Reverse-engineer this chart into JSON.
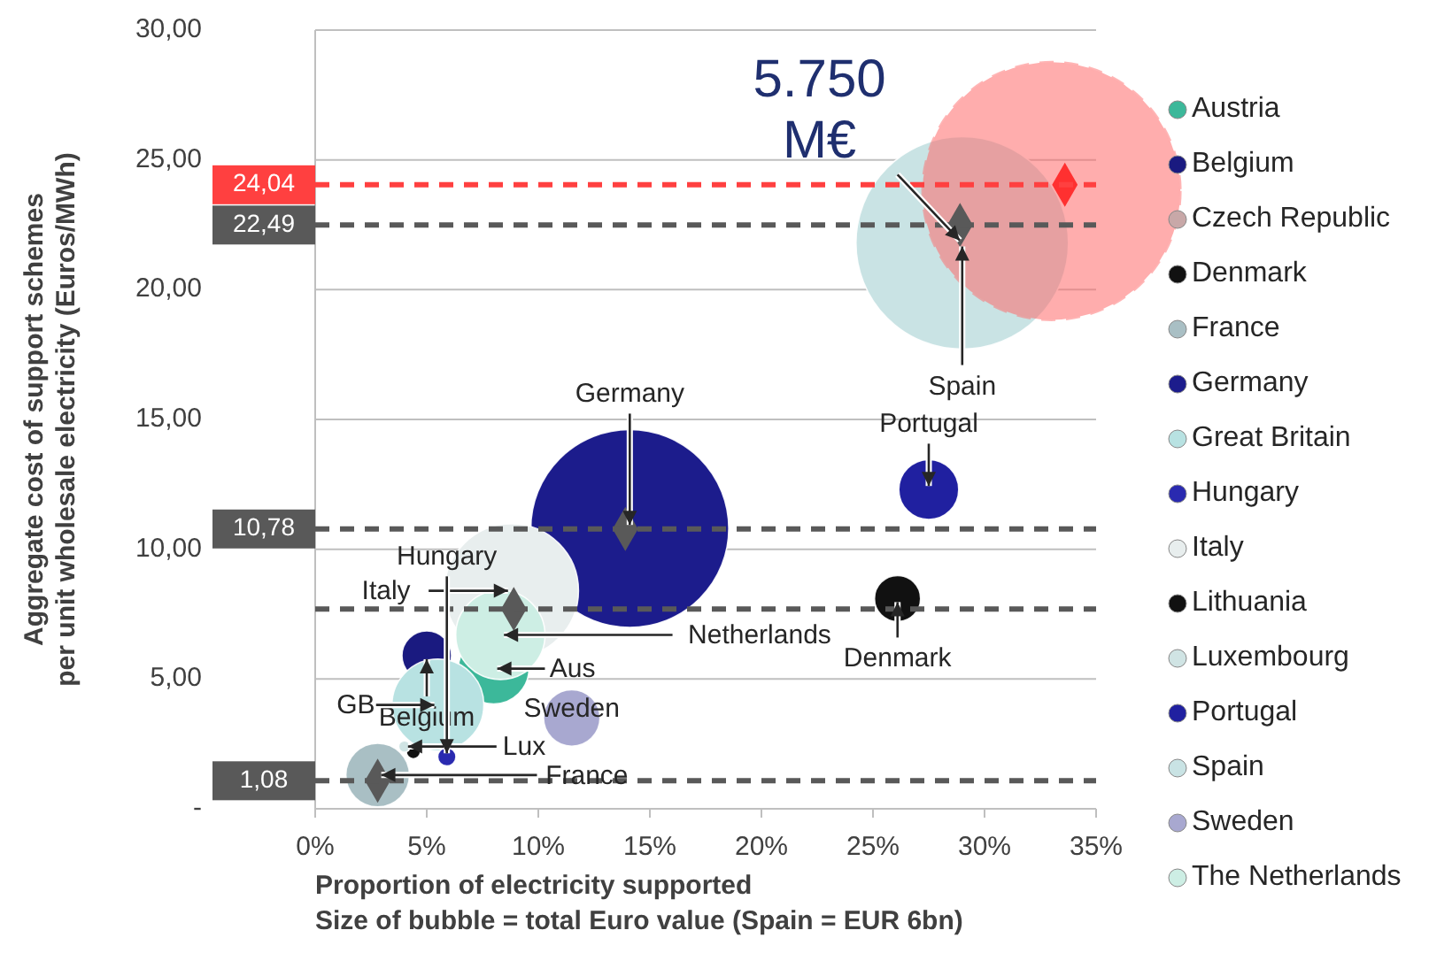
{
  "chart_data": {
    "type": "bubble",
    "xlabel": "Proportion of electricity supported\nSize of bubble = total Euro value (Spain = EUR 6bn)",
    "ylabel": "Aggregate cost of support schemes\nper unit wholesale electricity (Euros/MWh)",
    "xlim": [
      0,
      35
    ],
    "xticks": [
      {
        "value": 0,
        "label": "0%"
      },
      {
        "value": 5,
        "label": "5%"
      },
      {
        "value": 10,
        "label": "10%"
      },
      {
        "value": 15,
        "label": "15%"
      },
      {
        "value": 20,
        "label": "20%"
      },
      {
        "value": 25,
        "label": "25%"
      },
      {
        "value": 30,
        "label": "30%"
      },
      {
        "value": 35,
        "label": "35%"
      }
    ],
    "ylim": [
      0,
      30
    ],
    "yticks": [
      {
        "value": 0,
        "label": "-"
      },
      {
        "value": 5,
        "label": "5,00"
      },
      {
        "value": 10,
        "label": "10,00"
      },
      {
        "value": 15,
        "label": "15,00"
      },
      {
        "value": 20,
        "label": "20,00"
      },
      {
        "value": 25,
        "label": "25,00"
      },
      {
        "value": 30,
        "label": "30,00"
      }
    ],
    "grid": "y",
    "legend": "right",
    "series": [
      {
        "name": "Austria",
        "color": "#3cb89a",
        "x": [
          8.0
        ],
        "values": [
          5.4
        ],
        "sizes": [
          0.075
        ]
      },
      {
        "name": "Belgium",
        "color": "#1a1a80",
        "x": [
          5.0
        ],
        "values": [
          5.9
        ],
        "sizes": [
          0.037
        ]
      },
      {
        "name": "Czech Republic",
        "color": "#c8a8a8",
        "x": [
          null
        ],
        "values": [
          null
        ],
        "sizes": [
          null
        ]
      },
      {
        "name": "Denmark",
        "color": "#111111",
        "x": [
          26.1
        ],
        "values": [
          8.1
        ],
        "sizes": [
          0.032
        ]
      },
      {
        "name": "France",
        "color": "#a9bfc4",
        "x": [
          2.8
        ],
        "values": [
          1.3
        ],
        "sizes": [
          0.061
        ]
      },
      {
        "name": "Germany",
        "color": "#1c1c8c",
        "x": [
          14.1
        ],
        "values": [
          10.8
        ],
        "sizes": [
          0.59
        ]
      },
      {
        "name": "Great Britain",
        "color": "#b8e2e2",
        "x": [
          5.5
        ],
        "values": [
          4.0
        ],
        "sizes": [
          0.127
        ]
      },
      {
        "name": "Hungary",
        "color": "#2a2ab0",
        "x": [
          5.9
        ],
        "values": [
          2.0
        ],
        "sizes": [
          0.005
        ]
      },
      {
        "name": "Italy",
        "color": "#e8eeee",
        "x": [
          8.8
        ],
        "values": [
          8.4
        ],
        "sizes": [
          0.27
        ]
      },
      {
        "name": "Lithuania",
        "color": "#111111",
        "x": [
          4.4
        ],
        "values": [
          2.2
        ],
        "sizes": [
          0.003
        ]
      },
      {
        "name": "Luxembourg",
        "color": "#d0e4e4",
        "x": [
          4.0
        ],
        "values": [
          2.4
        ],
        "sizes": [
          0.002
        ]
      },
      {
        "name": "Portugal",
        "color": "#2020a0",
        "x": [
          27.5
        ],
        "values": [
          12.3
        ],
        "sizes": [
          0.054
        ]
      },
      {
        "name": "Spain",
        "color": "#c9e3e4",
        "x": [
          29.0
        ],
        "values": [
          21.8
        ],
        "sizes": [
          0.68
        ]
      },
      {
        "name": "Sweden",
        "color": "#a8a8d0",
        "x": [
          11.5
        ],
        "values": [
          3.5
        ],
        "sizes": [
          0.048
        ]
      },
      {
        "name": "The Netherlands",
        "color": "#cdeee4",
        "x": [
          8.3
        ],
        "values": [
          6.7
        ],
        "sizes": [
          0.12
        ]
      },
      {
        "color": "#ff6b6b",
        "x": [
          33.0
        ],
        "values": [
          23.8
        ],
        "sizes": [
          1
        ],
        "line_style": "dashed"
      },
      {
        "type": "scatter",
        "marker": "diamond",
        "color": "#595959",
        "x": [
          28.9,
          13.9,
          8.9,
          2.8
        ],
        "values": [
          22.49,
          10.78,
          7.7,
          1.08
        ]
      },
      {
        "type": "scatter",
        "marker": "diamond",
        "color": "#ff3030",
        "x": [
          33.6
        ],
        "values": [
          24.04
        ]
      }
    ],
    "ref_lines": [
      {
        "axis": "y",
        "value": 24.04,
        "label": "24,04",
        "color": "#ff4040",
        "line_style": "dashed"
      },
      {
        "axis": "y",
        "value": 22.49,
        "label": "22,49",
        "color": "#595959",
        "line_style": "dashed"
      },
      {
        "axis": "y",
        "value": 10.78,
        "label": "10,78",
        "color": "#595959",
        "line_style": "dashed"
      },
      {
        "axis": "y",
        "value": 7.7,
        "label": null,
        "color": "#595959",
        "line_style": "dashed"
      },
      {
        "axis": "y",
        "value": 1.08,
        "label": "1,08",
        "color": "#595959",
        "line_style": "dashed"
      }
    ],
    "annotations": [
      {
        "text": "Germany",
        "x": 14.1,
        "y": 10.8
      },
      {
        "text": "Portugal",
        "x": 27.5,
        "y": 12.3
      },
      {
        "text": "Denmark",
        "x": 26.1,
        "y": 8.1
      },
      {
        "text": "Italy",
        "x": 8.8,
        "y": 8.4
      },
      {
        "text": "Belgium",
        "x": 5.0,
        "y": 5.9
      },
      {
        "text": "Lux",
        "x": 4.0,
        "y": 2.4
      },
      {
        "text": "GB",
        "x": 5.5,
        "y": 4.0
      },
      {
        "text": "France",
        "x": 2.8,
        "y": 1.3
      },
      {
        "text": "Aus",
        "x": 8.0,
        "y": 5.4
      },
      {
        "text": "Hungary",
        "x": 5.9,
        "y": 2.0
      },
      {
        "text": "Sweden",
        "x": 11.5,
        "y": 3.5
      },
      {
        "text": "Netherlands",
        "x": 8.3,
        "y": 6.7
      },
      {
        "text": "Spain",
        "x": 29.0,
        "y": 21.8
      },
      {
        "text": "5.750\nM€",
        "x": 29.0,
        "y": 21.8
      }
    ]
  }
}
